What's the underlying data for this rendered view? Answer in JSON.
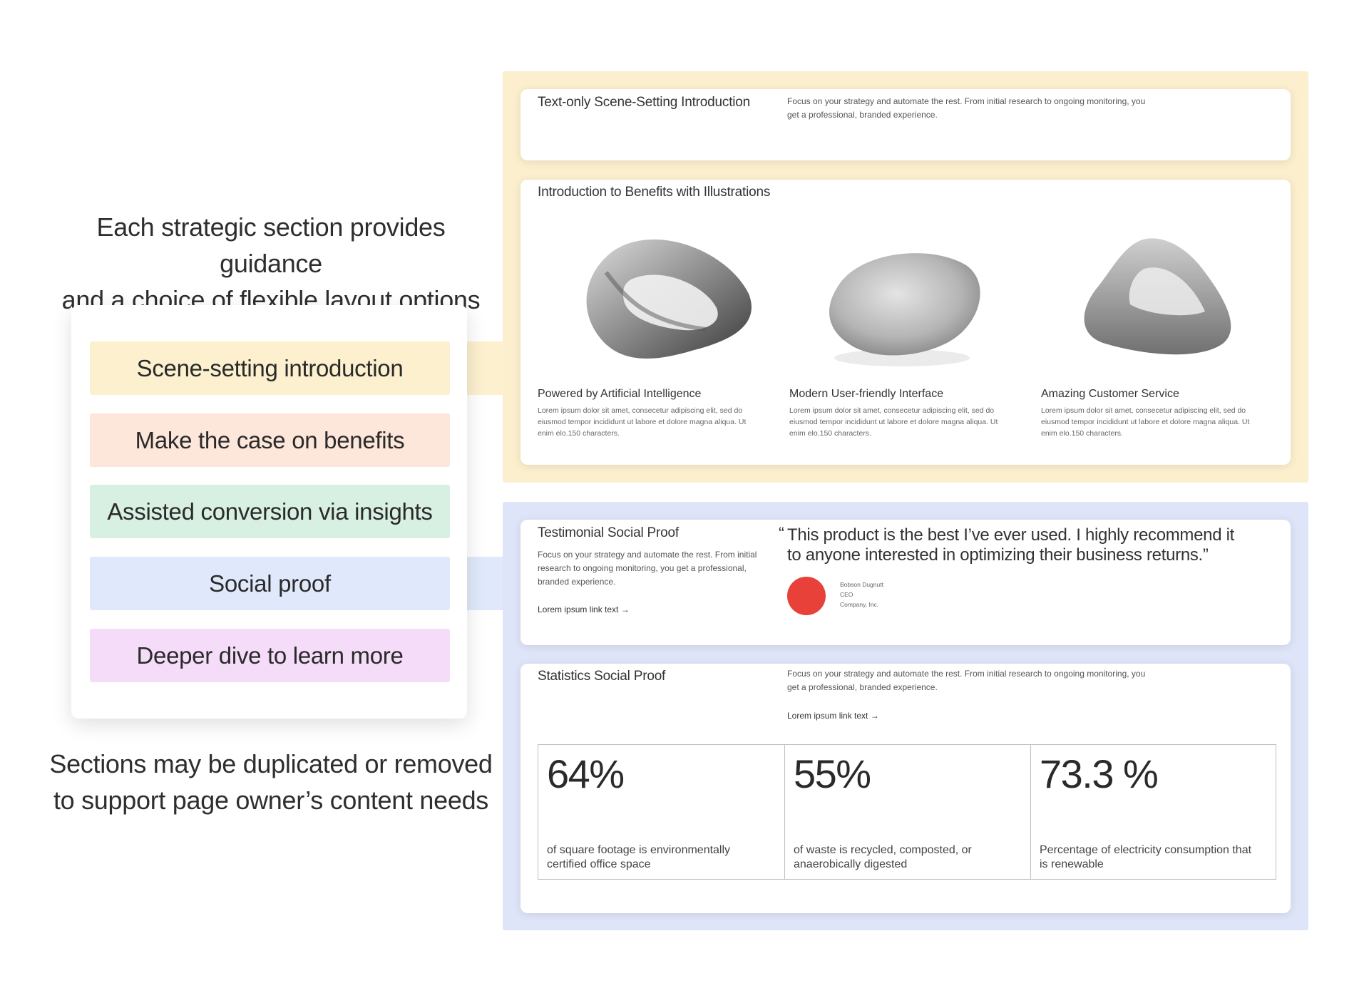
{
  "left": {
    "intro_line1": "Each strategic section provides guidance",
    "intro_line2": "and a choice of flexible layout options",
    "outro_line1": "Sections may be duplicated or removed",
    "outro_line2": "to support page owner’s content needs",
    "sections": [
      {
        "label": "Scene-setting introduction",
        "color": "#fcf0cf"
      },
      {
        "label": "Make the case on benefits",
        "color": "#fde6da"
      },
      {
        "label": "Assisted conversion via insights",
        "color": "#d8f0e1"
      },
      {
        "label": "Social proof",
        "color": "#e0e9fb"
      },
      {
        "label": "Deeper dive to learn more",
        "color": "#f5dcf9"
      }
    ]
  },
  "scene_group": {
    "color": "#fbefcd",
    "text_only": {
      "title": "Text-only Scene-Setting Introduction",
      "body": "Focus on your strategy and automate the rest. From initial research to ongoing monitoring, you get a professional, branded experience."
    },
    "benefits": {
      "title": "Introduction to Benefits with Illustrations",
      "items": [
        {
          "title": "Powered by Artificial Intelligence",
          "body": "Lorem ipsum dolor sit amet, consecetur adipiscing elit, sed do eiusmod tempor incididunt ut labore et dolore magna aliqua. Ut enim elo.150 characters."
        },
        {
          "title": "Modern User-friendly Interface",
          "body": "Lorem ipsum dolor sit amet, consecetur adipiscing elit, sed do eiusmod tempor incididunt ut labore et dolore magna aliqua. Ut enim elo.150 characters."
        },
        {
          "title": "Amazing Customer Service",
          "body": "Lorem ipsum dolor sit amet, consecetur adipiscing elit, sed do eiusmod tempor incididunt ut labore et dolore magna aliqua. Ut enim elo.150 characters."
        }
      ]
    }
  },
  "social_group": {
    "color": "#dfe5f8",
    "testimonial": {
      "title": "Testimonial Social Proof",
      "body": "Focus on your strategy and automate the rest. From initial research to ongoing monitoring, you get a professional, branded experience.",
      "link": "Lorem ipsum link text →",
      "quote_mark": "“",
      "quote": "This product is the best I’ve ever used. I highly recommend it to anyone interested in optimizing their business returns.”",
      "author_name": "Bobson Dugnutt",
      "author_role": "CEO",
      "author_company": "Company, Inc.",
      "avatar_color": "#e8413a"
    },
    "statistics": {
      "title": "Statistics Social Proof",
      "body": "Focus on your strategy and automate the rest. From initial research to ongoing monitoring, you get a professional, branded experience.",
      "link": "Lorem ipsum link text →",
      "stats": [
        {
          "value": "64%",
          "label": "of square footage is environmentally certified office space"
        },
        {
          "value": "55%",
          "label": "of waste is recycled, composted, or anaerobically digested"
        },
        {
          "value": "73.3 %",
          "label": "Percentage of electricity consumption that is renewable"
        }
      ]
    }
  }
}
